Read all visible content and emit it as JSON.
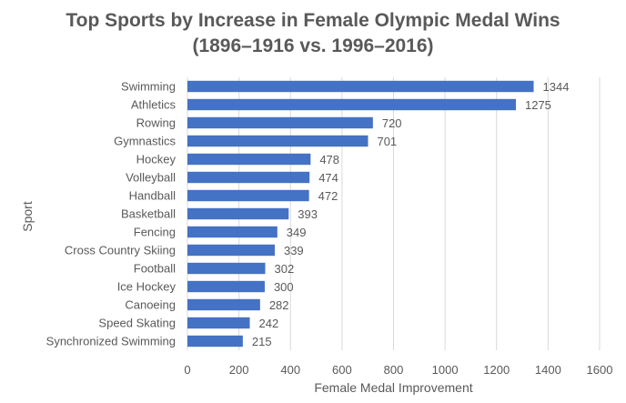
{
  "chart_data": {
    "type": "bar",
    "orientation": "horizontal",
    "title": "Top Sports by Increase in Female Olympic Medal Wins",
    "subtitle": "(1896–1916 vs. 1996–2016)",
    "xlabel": "Female Medal Improvement",
    "ylabel": "Sport",
    "categories": [
      "Swimming",
      "Athletics",
      "Rowing",
      "Gymnastics",
      "Hockey",
      "Volleyball",
      "Handball",
      "Basketball",
      "Fencing",
      "Cross Country Skiing",
      "Football",
      "Ice Hockey",
      "Canoeing",
      "Speed Skating",
      "Synchronized Swimming"
    ],
    "values": [
      1344,
      1275,
      720,
      701,
      478,
      474,
      472,
      393,
      349,
      339,
      302,
      300,
      282,
      242,
      215
    ],
    "xlim": [
      0,
      1600
    ],
    "xticks": [
      0,
      200,
      400,
      600,
      800,
      1000,
      1200,
      1400,
      1600
    ],
    "grid": "vertical",
    "legend": "none",
    "data_labels": true
  },
  "colors": {
    "bar": "#4472C4",
    "grid": "#D9D9D9",
    "text": "#595959"
  }
}
